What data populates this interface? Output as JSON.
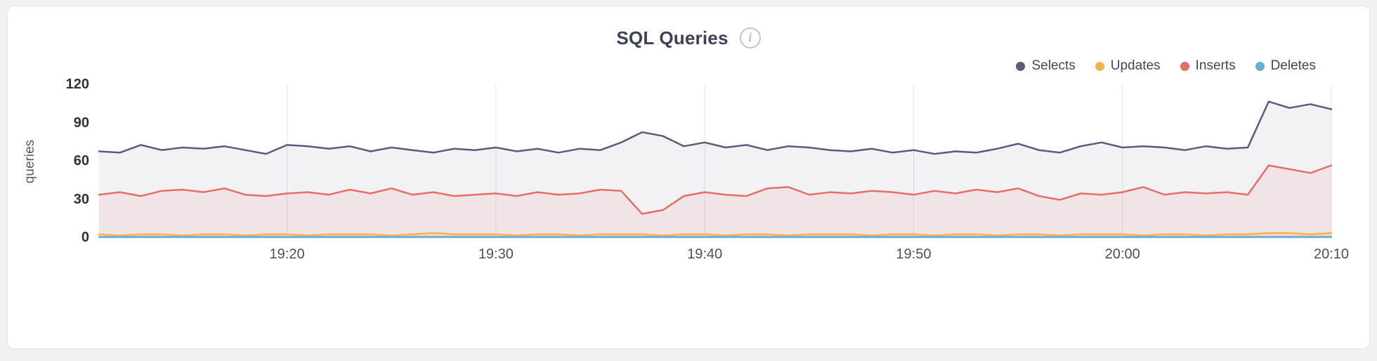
{
  "card": {
    "title": "SQL Queries",
    "info_glyph": "i"
  },
  "chart_data": {
    "type": "line",
    "title": "SQL Queries",
    "ylabel": "queries",
    "ylim": [
      0,
      120
    ],
    "yticks": [
      0,
      30,
      60,
      90,
      120
    ],
    "x_start": "19:11",
    "x_step_minutes": 1,
    "x_tick_labels": [
      "19:20",
      "19:30",
      "19:40",
      "19:50",
      "20:00",
      "20:10"
    ],
    "x_tick_indices": [
      9,
      19,
      29,
      39,
      49,
      59
    ],
    "grid": "vertical",
    "legend_position": "top-right",
    "series": [
      {
        "name": "Selects",
        "color": "#565e7c",
        "fill": "rgba(86,94,124,0.08)",
        "values": [
          68,
          67,
          73,
          69,
          71,
          70,
          72,
          69,
          66,
          73,
          72,
          70,
          72,
          68,
          71,
          69,
          67,
          70,
          69,
          71,
          68,
          70,
          67,
          70,
          69,
          75,
          83,
          80,
          72,
          75,
          71,
          73,
          69,
          72,
          71,
          69,
          68,
          70,
          67,
          69,
          66,
          68,
          67,
          70,
          74,
          69,
          67,
          72,
          75,
          71,
          72,
          71,
          69,
          72,
          70,
          71,
          107,
          102,
          105,
          101
        ]
      },
      {
        "name": "Updates",
        "color": "#f0b64a",
        "fill": "rgba(241,182,76,0.18)",
        "values": [
          3,
          2,
          3,
          3,
          2,
          3,
          3,
          2,
          3,
          3,
          2,
          3,
          3,
          3,
          2,
          3,
          4,
          3,
          3,
          3,
          2,
          3,
          3,
          2,
          3,
          3,
          3,
          2,
          3,
          3,
          2,
          3,
          3,
          2,
          3,
          3,
          3,
          2,
          3,
          3,
          2,
          3,
          3,
          2,
          3,
          3,
          2,
          3,
          3,
          3,
          2,
          3,
          3,
          2,
          3,
          3,
          4,
          4,
          3,
          4
        ]
      },
      {
        "name": "Inserts",
        "color": "#e66e62",
        "fill": "rgba(230,110,98,0.10)",
        "values": [
          34,
          36,
          33,
          37,
          38,
          36,
          39,
          34,
          33,
          35,
          36,
          34,
          38,
          35,
          39,
          34,
          36,
          33,
          34,
          35,
          33,
          36,
          34,
          35,
          38,
          37,
          19,
          22,
          33,
          36,
          34,
          33,
          39,
          40,
          34,
          36,
          35,
          37,
          36,
          34,
          37,
          35,
          38,
          36,
          39,
          33,
          30,
          35,
          34,
          36,
          40,
          34,
          36,
          35,
          36,
          34,
          57,
          54,
          51,
          57
        ]
      },
      {
        "name": "Deletes",
        "color": "#68aed5",
        "fill": "none",
        "values": [
          1,
          1,
          1,
          1,
          1,
          1,
          1,
          1,
          1,
          1,
          1,
          1,
          1,
          1,
          1,
          1,
          1,
          1,
          1,
          1,
          1,
          1,
          1,
          1,
          1,
          1,
          1,
          1,
          1,
          1,
          1,
          1,
          1,
          1,
          1,
          1,
          1,
          1,
          1,
          1,
          1,
          1,
          1,
          1,
          1,
          1,
          1,
          1,
          1,
          1,
          1,
          1,
          1,
          1,
          1,
          1,
          1,
          1,
          1,
          1
        ]
      }
    ]
  }
}
